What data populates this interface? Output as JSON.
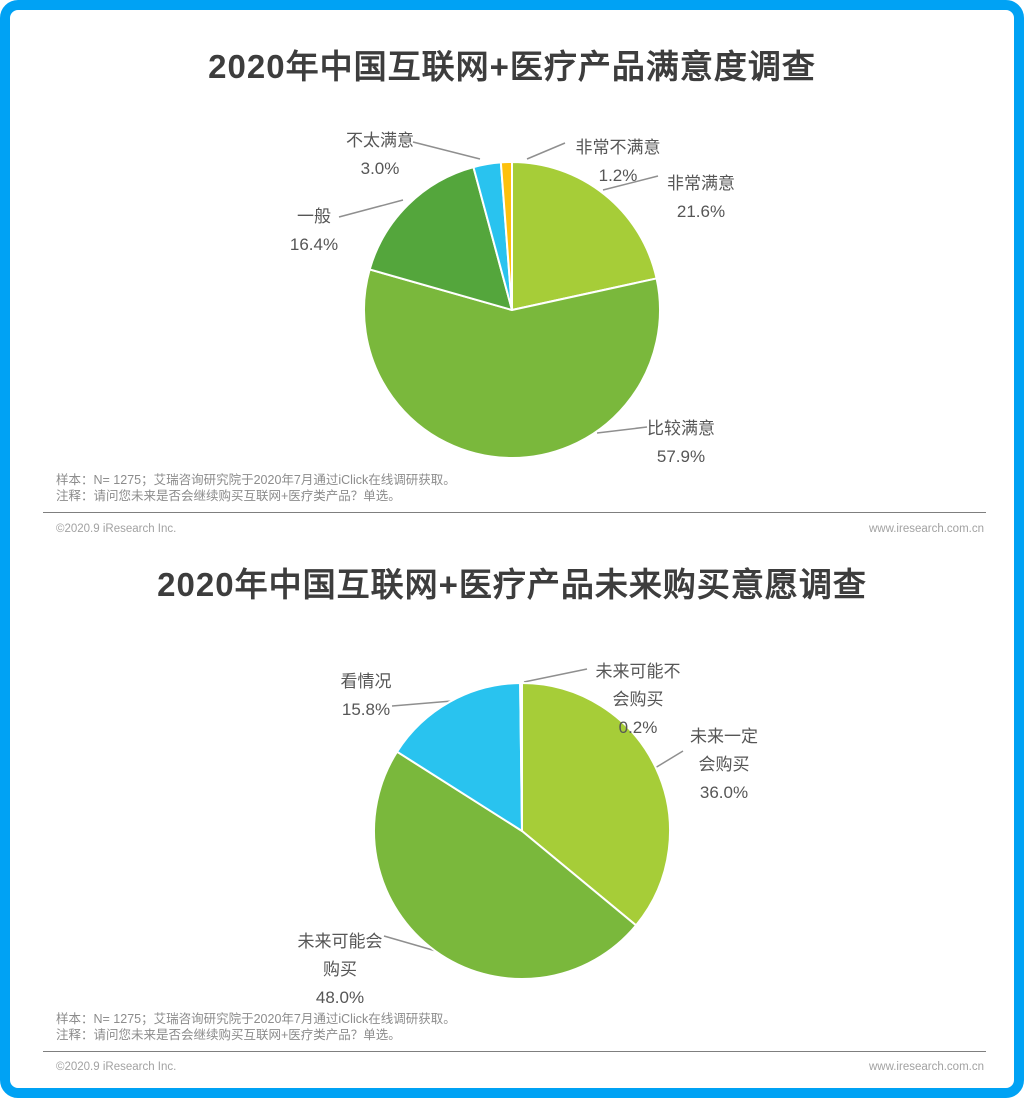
{
  "page": {
    "frame_color": "#00a2f4",
    "background_color": "#ffffff",
    "title_color": "#3d3d3d",
    "label_color": "#565656"
  },
  "chart_data": [
    {
      "type": "pie",
      "title": "2020年中国互联网+医疗产品满意度调查",
      "unit": "percent",
      "start_angle_deg": 0,
      "clockwise": true,
      "categories": [
        "非常满意",
        "比较满意",
        "一般",
        "不太满意",
        "非常不满意"
      ],
      "values": [
        21.6,
        57.9,
        16.4,
        3.0,
        1.2
      ],
      "colors": [
        "#a6cd38",
        "#7ab83c",
        "#54a63c",
        "#29c3ef",
        "#fdc10d"
      ],
      "labels": [
        {
          "lines": [
            "非常满意"
          ],
          "percent": "21.6%"
        },
        {
          "lines": [
            "比较满意"
          ],
          "percent": "57.9%"
        },
        {
          "lines": [
            "一般"
          ],
          "percent": "16.4%"
        },
        {
          "lines": [
            "不太满意"
          ],
          "percent": "3.0%"
        },
        {
          "lines": [
            "非常不满意"
          ],
          "percent": "1.2%"
        }
      ],
      "sample_note": "样本：N= 1275；艾瑞咨询研究院于2020年7月通过iClick在线调研获取。",
      "question_note": "注释：请问您未来是否会继续购买互联网+医疗类产品？单选。",
      "copyright": "©2020.9 iResearch Inc.",
      "website": "www.iresearch.com.cn"
    },
    {
      "type": "pie",
      "title": "2020年中国互联网+医疗产品未来购买意愿调查",
      "unit": "percent",
      "start_angle_deg": 0,
      "clockwise": true,
      "categories": [
        "未来一定会购买",
        "未来可能会购买",
        "看情况",
        "未来可能不会购买"
      ],
      "values": [
        36.0,
        48.0,
        15.8,
        0.2
      ],
      "colors": [
        "#a6cd38",
        "#7ab83c",
        "#29c3ef",
        "#fdc10d"
      ],
      "labels": [
        {
          "lines": [
            "未来一定",
            "会购买"
          ],
          "percent": "36.0%"
        },
        {
          "lines": [
            "未来可能会",
            "购买"
          ],
          "percent": "48.0%"
        },
        {
          "lines": [
            "看情况"
          ],
          "percent": "15.8%"
        },
        {
          "lines": [
            "未来可能不",
            "会购买"
          ],
          "percent": "0.2%"
        }
      ],
      "sample_note": "样本：N= 1275；艾瑞咨询研究院于2020年7月通过iClick在线调研获取。",
      "question_note": "注释：请问您未来是否会继续购买互联网+医疗类产品？单选。",
      "copyright": "©2020.9 iResearch Inc.",
      "website": "www.iresearch.com.cn"
    }
  ]
}
